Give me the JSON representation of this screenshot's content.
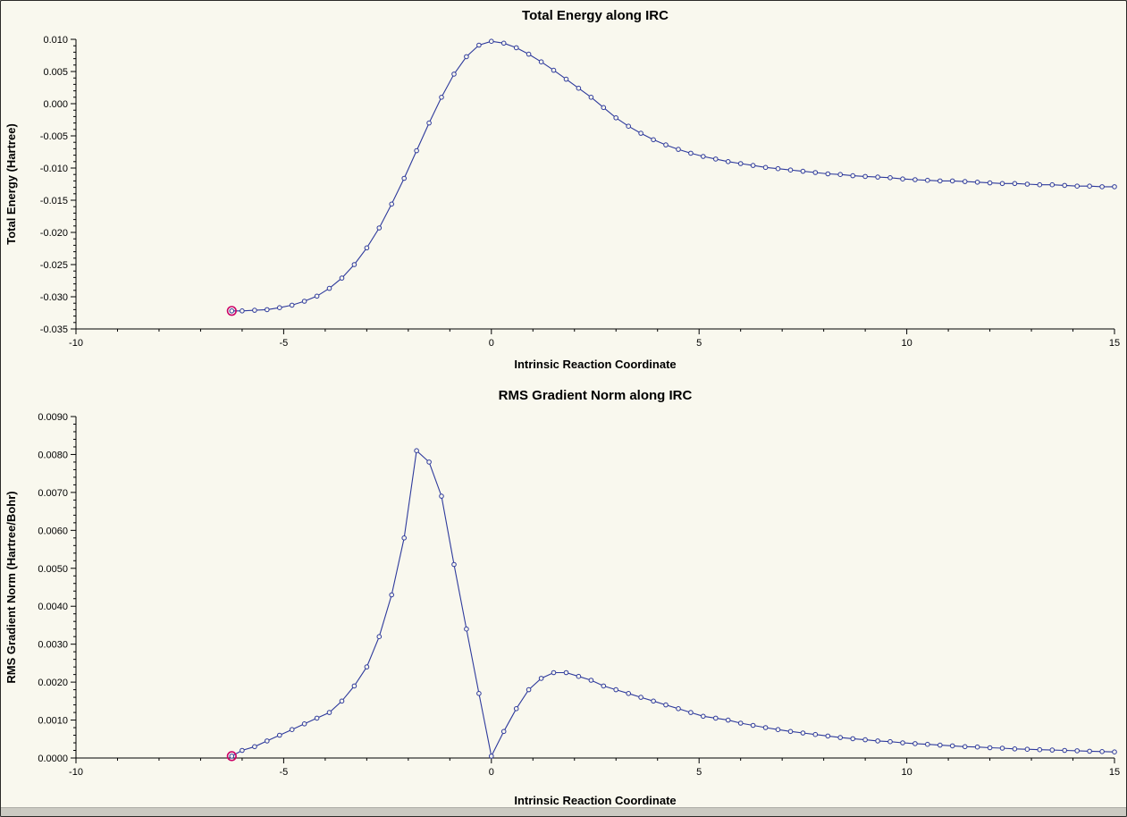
{
  "colors": {
    "window_background": "#f9f8ee",
    "window_border": "#2b2b28",
    "bottom_strip": "#cbcac2"
  },
  "chart_data": [
    {
      "type": "line",
      "title": "Total Energy along IRC",
      "xlabel": "Intrinsic Reaction Coordinate",
      "ylabel": "Total Energy (Hartree)",
      "xlim": [
        -10,
        15
      ],
      "ylim": [
        -0.035,
        0.01
      ],
      "x_ticks": [
        -10,
        -5,
        0,
        5,
        10,
        15
      ],
      "x_tick_labels": [
        "-10",
        "-5",
        "0",
        "5",
        "10",
        "15"
      ],
      "x_minor_step": 1,
      "y_ticks": [
        0.01,
        0.005,
        0.0,
        -0.005,
        -0.01,
        -0.015,
        -0.02,
        -0.025,
        -0.03,
        -0.035
      ],
      "y_tick_labels": [
        "0.010",
        "0.005",
        "0.000",
        "-0.005",
        "-0.010",
        "-0.015",
        "-0.020",
        "-0.025",
        "-0.030",
        "-0.035"
      ],
      "y_minor_step": 0.001,
      "grid": false,
      "legend": "none",
      "line_color": "#2e3a9c",
      "marker_fill": "#f9f8ee",
      "axis_color": "#000000",
      "highlight_color": "#cc0066",
      "highlight_index": 0,
      "x": [
        -6.25,
        -6.0,
        -5.7,
        -5.4,
        -5.1,
        -4.8,
        -4.5,
        -4.2,
        -3.9,
        -3.6,
        -3.3,
        -3.0,
        -2.7,
        -2.4,
        -2.1,
        -1.8,
        -1.5,
        -1.2,
        -0.9,
        -0.6,
        -0.3,
        0.0,
        0.3,
        0.6,
        0.9,
        1.2,
        1.5,
        1.8,
        2.1,
        2.4,
        2.7,
        3.0,
        3.3,
        3.6,
        3.9,
        4.2,
        4.5,
        4.8,
        5.1,
        5.4,
        5.7,
        6.0,
        6.3,
        6.6,
        6.9,
        7.2,
        7.5,
        7.8,
        8.1,
        8.4,
        8.7,
        9.0,
        9.3,
        9.6,
        9.9,
        10.2,
        10.5,
        10.8,
        11.1,
        11.4,
        11.7,
        12.0,
        12.3,
        12.6,
        12.9,
        13.2,
        13.5,
        13.8,
        14.1,
        14.4,
        14.7,
        15.0
      ],
      "y": [
        -0.0322,
        -0.0322,
        -0.0321,
        -0.032,
        -0.0317,
        -0.0313,
        -0.0307,
        -0.0299,
        -0.0287,
        -0.0271,
        -0.025,
        -0.0224,
        -0.0193,
        -0.0156,
        -0.0116,
        -0.0073,
        -0.003,
        0.001,
        0.0046,
        0.0073,
        0.0091,
        0.0097,
        0.0094,
        0.0087,
        0.0077,
        0.0065,
        0.0052,
        0.0038,
        0.0024,
        0.001,
        -0.0006,
        -0.0022,
        -0.0035,
        -0.0046,
        -0.0056,
        -0.0064,
        -0.0071,
        -0.0077,
        -0.0082,
        -0.0086,
        -0.009,
        -0.0093,
        -0.0096,
        -0.0099,
        -0.0101,
        -0.0103,
        -0.0105,
        -0.0107,
        -0.0109,
        -0.011,
        -0.0112,
        -0.0113,
        -0.0114,
        -0.0115,
        -0.0117,
        -0.0118,
        -0.0119,
        -0.012,
        -0.012,
        -0.0121,
        -0.0122,
        -0.0123,
        -0.0124,
        -0.0124,
        -0.0125,
        -0.0126,
        -0.0126,
        -0.0127,
        -0.0128,
        -0.0128,
        -0.0129,
        -0.0129
      ]
    },
    {
      "type": "line",
      "title": "RMS Gradient Norm along IRC",
      "xlabel": "Intrinsic Reaction Coordinate",
      "ylabel": "RMS Gradient Norm (Hartree/Bohr)",
      "xlim": [
        -10,
        15
      ],
      "ylim": [
        0.0,
        0.009
      ],
      "x_ticks": [
        -10,
        -5,
        0,
        5,
        10,
        15
      ],
      "x_tick_labels": [
        "-10",
        "-5",
        "0",
        "5",
        "10",
        "15"
      ],
      "x_minor_step": 1,
      "y_ticks": [
        0.0,
        0.001,
        0.002,
        0.003,
        0.004,
        0.005,
        0.006,
        0.007,
        0.008,
        0.009
      ],
      "y_tick_labels": [
        "0.0000",
        "0.0010",
        "0.0020",
        "0.0030",
        "0.0040",
        "0.0050",
        "0.0060",
        "0.0070",
        "0.0080",
        "0.0090"
      ],
      "y_minor_step": 0.0002,
      "grid": false,
      "legend": "none",
      "line_color": "#2e3a9c",
      "marker_fill": "#f9f8ee",
      "axis_color": "#000000",
      "highlight_color": "#cc0066",
      "highlight_index": 0,
      "x": [
        -6.25,
        -6.0,
        -5.7,
        -5.4,
        -5.1,
        -4.8,
        -4.5,
        -4.2,
        -3.9,
        -3.6,
        -3.3,
        -3.0,
        -2.7,
        -2.4,
        -2.1,
        -1.8,
        -1.5,
        -1.2,
        -0.9,
        -0.6,
        -0.3,
        0.0,
        0.3,
        0.6,
        0.9,
        1.2,
        1.5,
        1.8,
        2.1,
        2.4,
        2.7,
        3.0,
        3.3,
        3.6,
        3.9,
        4.2,
        4.5,
        4.8,
        5.1,
        5.4,
        5.7,
        6.0,
        6.3,
        6.6,
        6.9,
        7.2,
        7.5,
        7.8,
        8.1,
        8.4,
        8.7,
        9.0,
        9.3,
        9.6,
        9.9,
        10.2,
        10.5,
        10.8,
        11.1,
        11.4,
        11.7,
        12.0,
        12.3,
        12.6,
        12.9,
        13.2,
        13.5,
        13.8,
        14.1,
        14.4,
        14.7,
        15.0
      ],
      "y": [
        5e-05,
        0.0002,
        0.0003,
        0.00045,
        0.0006,
        0.00075,
        0.0009,
        0.00105,
        0.0012,
        0.0015,
        0.0019,
        0.0024,
        0.0032,
        0.0043,
        0.0058,
        0.0081,
        0.0078,
        0.0069,
        0.0051,
        0.0034,
        0.0017,
        5e-05,
        0.0007,
        0.0013,
        0.0018,
        0.0021,
        0.00225,
        0.00225,
        0.00215,
        0.00205,
        0.0019,
        0.0018,
        0.0017,
        0.0016,
        0.0015,
        0.0014,
        0.0013,
        0.0012,
        0.0011,
        0.00105,
        0.001,
        0.00092,
        0.00086,
        0.0008,
        0.00075,
        0.0007,
        0.00066,
        0.00062,
        0.00058,
        0.00054,
        0.00051,
        0.00048,
        0.00045,
        0.00043,
        0.0004,
        0.00038,
        0.00036,
        0.00034,
        0.00032,
        0.0003,
        0.00029,
        0.00027,
        0.00026,
        0.00024,
        0.00023,
        0.00022,
        0.00021,
        0.0002,
        0.00019,
        0.00018,
        0.00017,
        0.00016
      ]
    }
  ]
}
